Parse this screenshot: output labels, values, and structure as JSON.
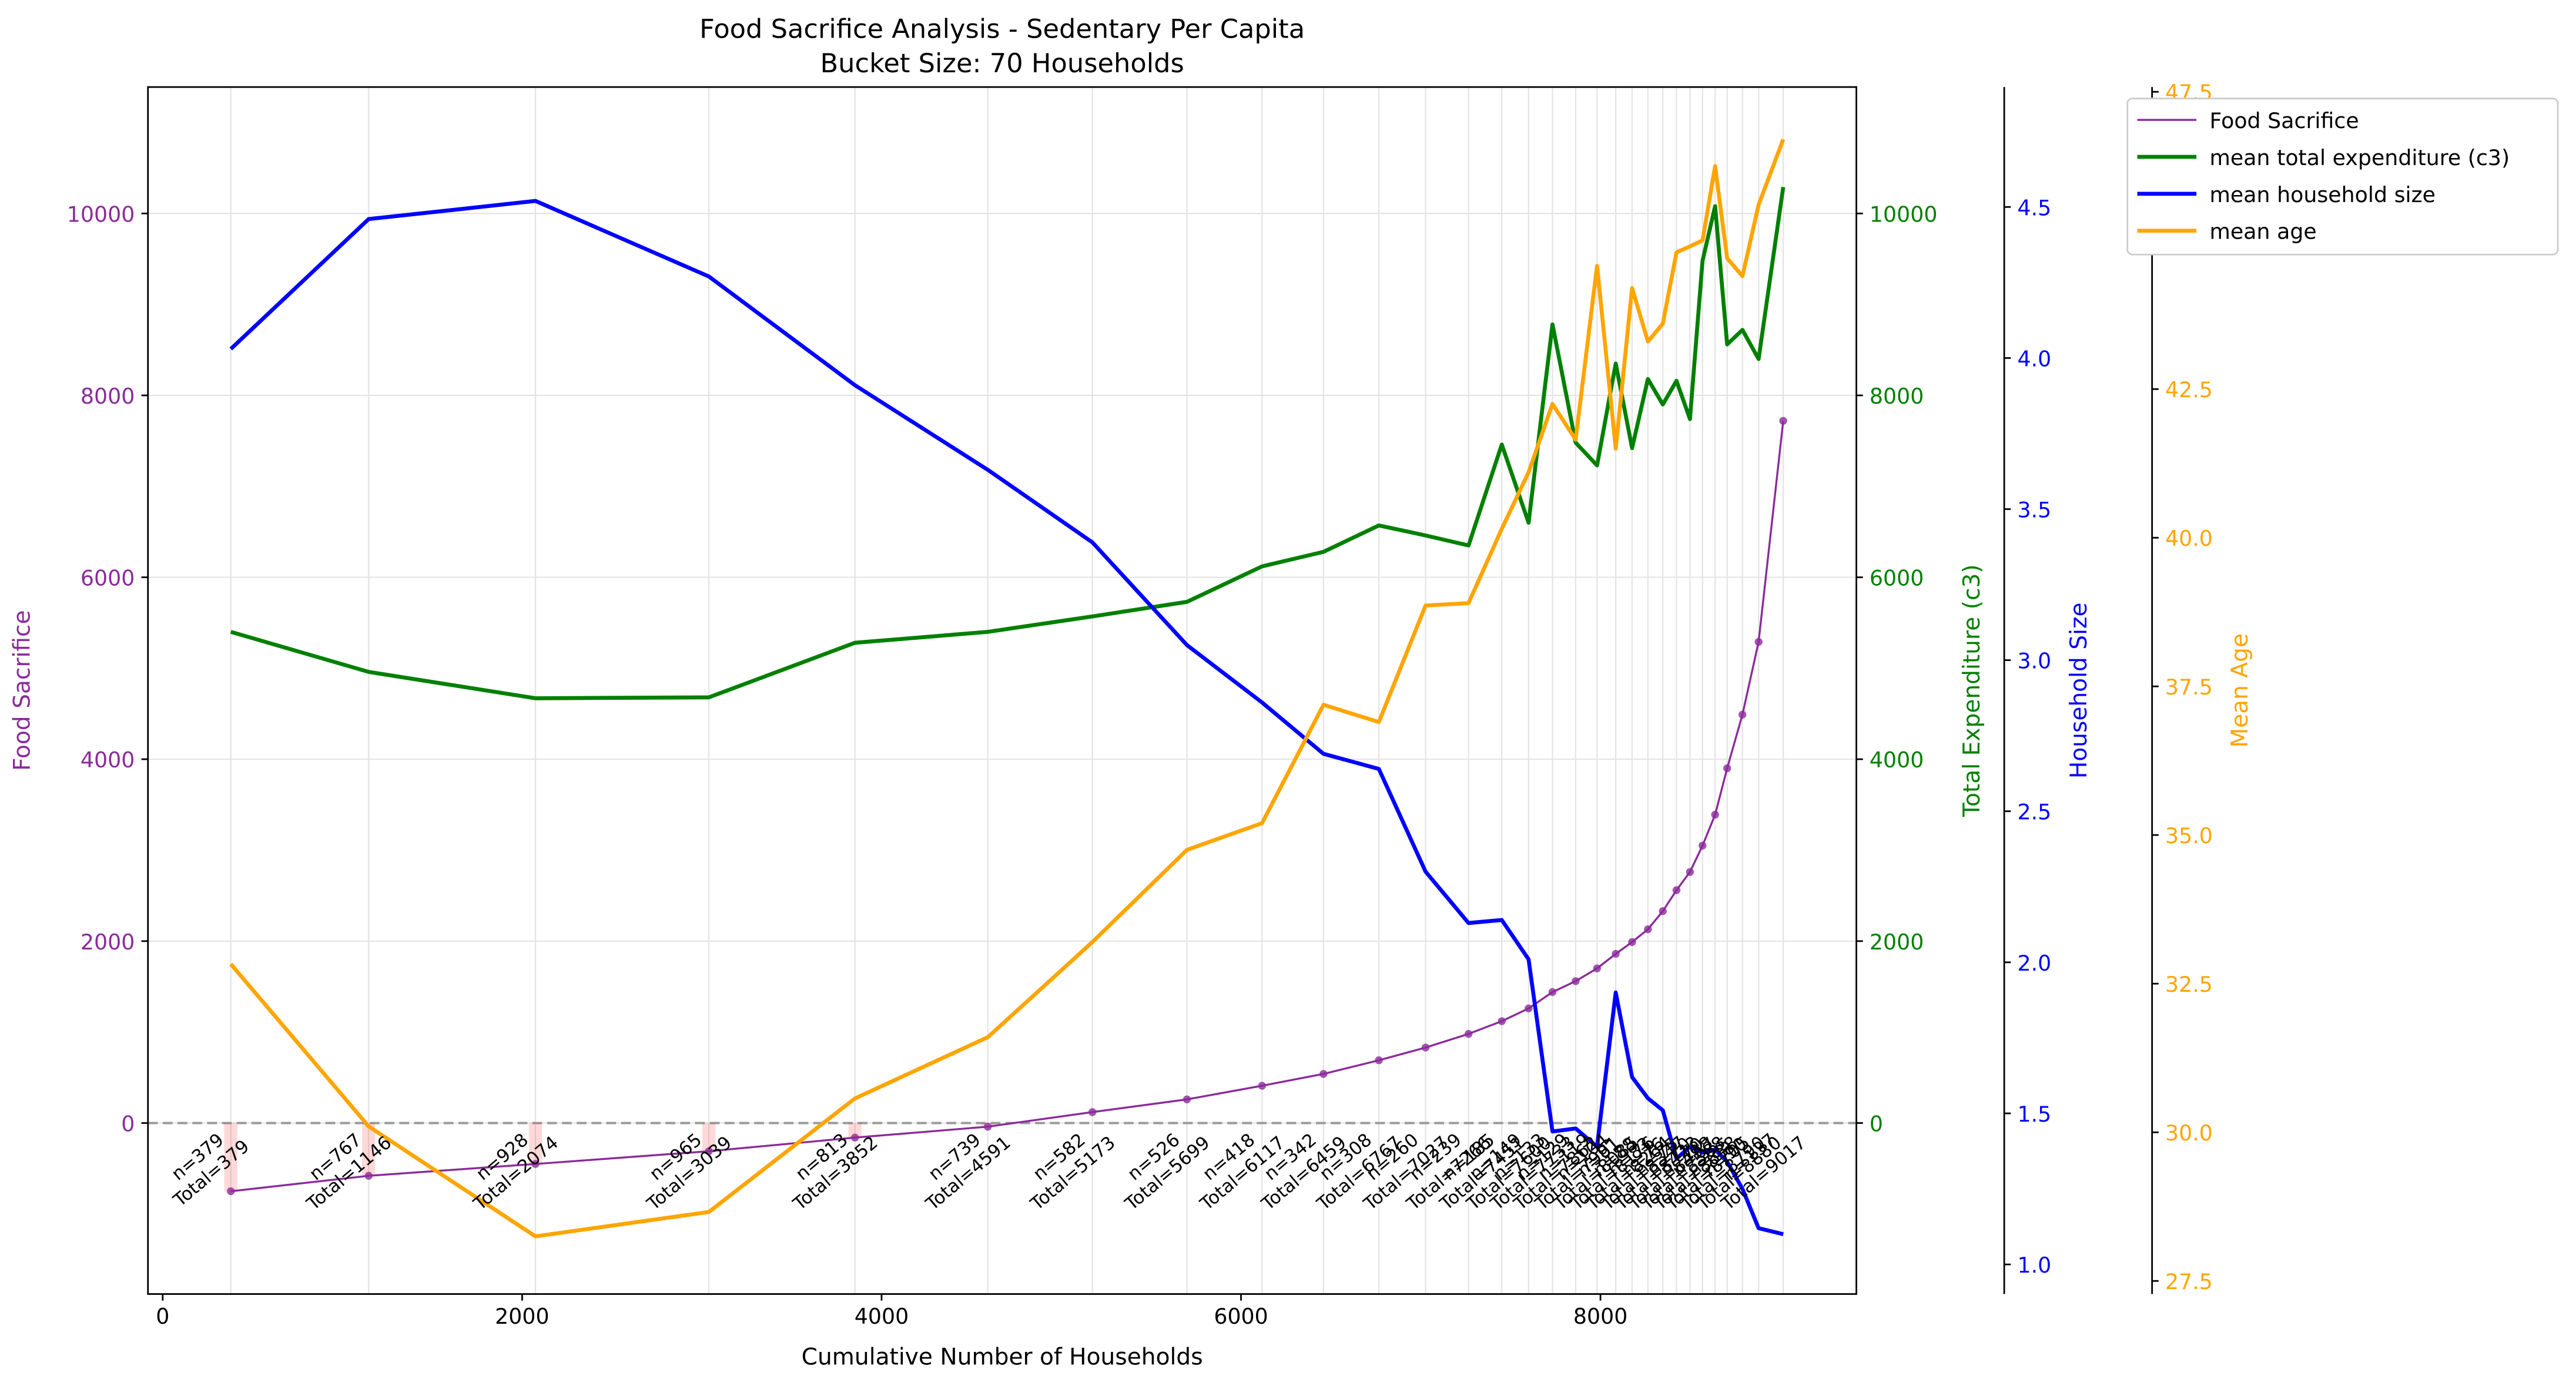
{
  "chart_data": {
    "type": "line",
    "title": "Food Sacrifice Analysis - Sedentary Per Capita",
    "subtitle": "Bucket Size: 70 Households",
    "xlabel": "Cumulative Number of Households",
    "ylabel": "Food Sacrifice",
    "y2label": "Total Expenditure (c3)",
    "y3label": "Household Size",
    "y4label": "Mean Age",
    "legend": "upper right",
    "grid": true,
    "x": [
      379,
      1146,
      2074,
      3039,
      3852,
      4591,
      5173,
      5699,
      6117,
      6459,
      6767,
      7027,
      7266,
      7451,
      7600,
      7733,
      7862,
      7981,
      8085,
      8176,
      8264,
      8347,
      8423,
      8498,
      8568,
      8638,
      8705,
      8790,
      8880,
      9017
    ],
    "xlim": [
      -82,
      9424
    ],
    "xticks": [
      0,
      2000,
      4000,
      6000,
      8000
    ],
    "ylim": [
      -1880,
      11390
    ],
    "yticks": [
      0,
      2000,
      4000,
      6000,
      8000,
      10000
    ],
    "y2lim": [
      -1880,
      11390
    ],
    "y2ticks": [
      0,
      2000,
      4000,
      6000,
      8000,
      10000
    ],
    "y3lim": [
      0.902,
      4.897
    ],
    "y3ticks": [
      {
        "value": 1,
        "label": "1.0"
      },
      1.5,
      {
        "value": 2,
        "label": "2.0"
      },
      2.5,
      {
        "value": 3,
        "label": "3.0"
      },
      3.5,
      {
        "value": 4,
        "label": "4.0"
      },
      4.5
    ],
    "y4lim": [
      27.28,
      47.58
    ],
    "y4ticks": [
      27.5,
      {
        "value": 30,
        "label": "30.0"
      },
      32.5,
      {
        "value": 35,
        "label": "35.0"
      },
      37.5,
      {
        "value": 40,
        "label": "40.0"
      },
      42.5,
      {
        "value": 45,
        "label": "45.0"
      },
      47.5
    ],
    "series": [
      {
        "name": "Food Sacrifice",
        "color": "#8b2a9b",
        "axis": "y",
        "values": [
          -750,
          -580,
          -450,
          -310,
          -160,
          -40,
          120,
          260,
          410,
          540,
          690,
          830,
          980,
          1120,
          1260,
          1440,
          1560,
          1700,
          1860,
          1990,
          2130,
          2330,
          2560,
          2760,
          3050,
          3390,
          3900,
          4490,
          5290,
          7720
        ]
      },
      {
        "name": "mean total expenditure (c3)",
        "color": "green",
        "axis": "y2",
        "values": [
          5400,
          4960,
          4670,
          4680,
          5280,
          5400,
          5570,
          5730,
          6120,
          6280,
          6570,
          6460,
          6350,
          7460,
          6600,
          8780,
          7480,
          7230,
          8350,
          7420,
          8180,
          7900,
          8160,
          7740,
          9480,
          10080,
          8560,
          8720,
          8400,
          10290
        ]
      },
      {
        "name": "mean household size",
        "color": "blue",
        "axis": "y3",
        "values": [
          4.03,
          4.46,
          4.52,
          4.27,
          3.91,
          3.63,
          3.39,
          3.05,
          2.86,
          2.69,
          2.64,
          2.3,
          2.13,
          2.14,
          2.01,
          1.44,
          1.45,
          1.39,
          1.9,
          1.62,
          1.55,
          1.51,
          1.35,
          1.39,
          1.37,
          1.38,
          1.34,
          1.25,
          1.12,
          1.1
        ]
      },
      {
        "name": "mean age",
        "color": "orange",
        "axis": "y4",
        "values": [
          32.83,
          30.1,
          28.25,
          28.66,
          30.57,
          31.6,
          33.2,
          34.75,
          35.2,
          37.19,
          36.9,
          38.86,
          38.9,
          40.15,
          41.1,
          42.25,
          41.65,
          44.57,
          41.5,
          44.2,
          43.3,
          43.6,
          44.8,
          44.9,
          45.0,
          46.25,
          44.7,
          44.4,
          45.6,
          46.7
        ]
      }
    ],
    "annotation_n": [
      "n=379",
      "n=767",
      "n=928",
      "n=965",
      "n=813",
      "n=739",
      "n=582",
      "n=526",
      "n=418",
      "n=342",
      "n=308",
      "n=260",
      "n=239",
      "n=185",
      "n=149",
      "n=133",
      "n=129",
      "n=119",
      "n=104",
      "n=91",
      "n=88",
      "n=83",
      "n=76",
      "n=75",
      "n=70",
      "n=70",
      "n=67",
      "n=85",
      "n=90",
      "n=137"
    ],
    "annotation_total": [
      "Total=379",
      "Total=1146",
      "Total=2074",
      "Total=3039",
      "Total=3852",
      "Total=4591",
      "Total=5173",
      "Total=5699",
      "Total=6117",
      "Total=6459",
      "Total=6767",
      "Total=7027",
      "Total=7266",
      "Total=7451",
      "Total=7600",
      "Total=7733",
      "Total=7862",
      "Total=7981",
      "Total=8085",
      "Total=8176",
      "Total=8264",
      "Total=8347",
      "Total=8423",
      "Total=8498",
      "Total=8568",
      "Total=8638",
      "Total=8705",
      "Total=8790",
      "Total=8880",
      "Total=9017"
    ]
  }
}
